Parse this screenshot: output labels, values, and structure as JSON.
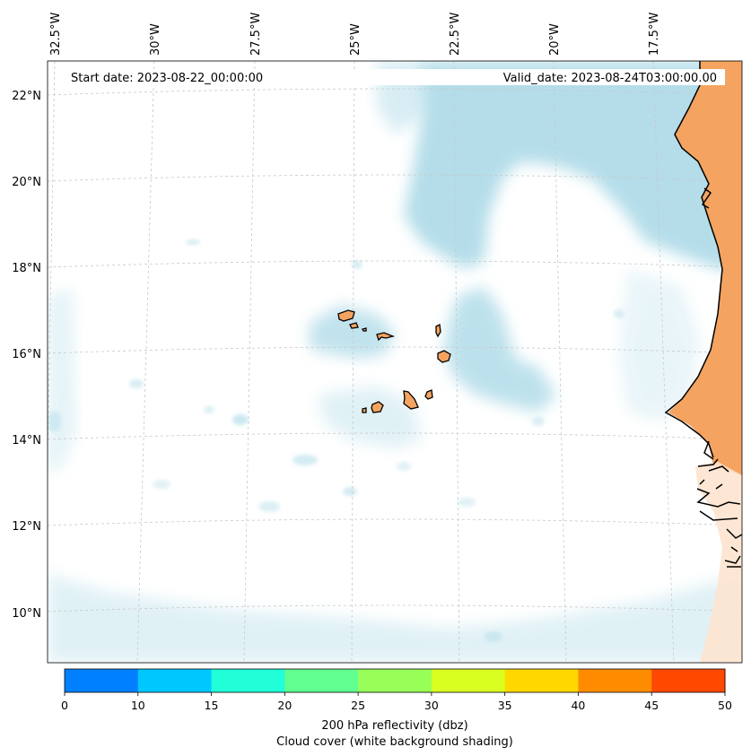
{
  "header": {
    "start_date": "Start date: 2023-08-22_00:00:00",
    "valid_date": "Valid_date: 2023-08-24T03:00:00.00"
  },
  "axes": {
    "lon_labels": [
      "32.5°W",
      "30°W",
      "27.5°W",
      "25°W",
      "22.5°W",
      "20°W",
      "17.5°W"
    ],
    "lat_labels": [
      "22°N",
      "20°N",
      "18°N",
      "16°N",
      "14°N",
      "12°N",
      "10°N"
    ]
  },
  "colorbar": {
    "ticks": [
      "0",
      "10",
      "15",
      "20",
      "25",
      "30",
      "35",
      "40",
      "45",
      "50"
    ],
    "colors": [
      "#0080ff",
      "#00c8ff",
      "#20ffd8",
      "#60ff90",
      "#98ff58",
      "#d8ff20",
      "#ffd800",
      "#ff8c00",
      "#ff4800"
    ],
    "label_line1": "200 hPa reflectivity (dbz)",
    "label_line2": "Cloud cover (white background shading)"
  },
  "map_colors": {
    "land": "#f4a460",
    "cloud": "#a8d8e6",
    "ocean": "#ffffff",
    "coast": "#000000"
  }
}
